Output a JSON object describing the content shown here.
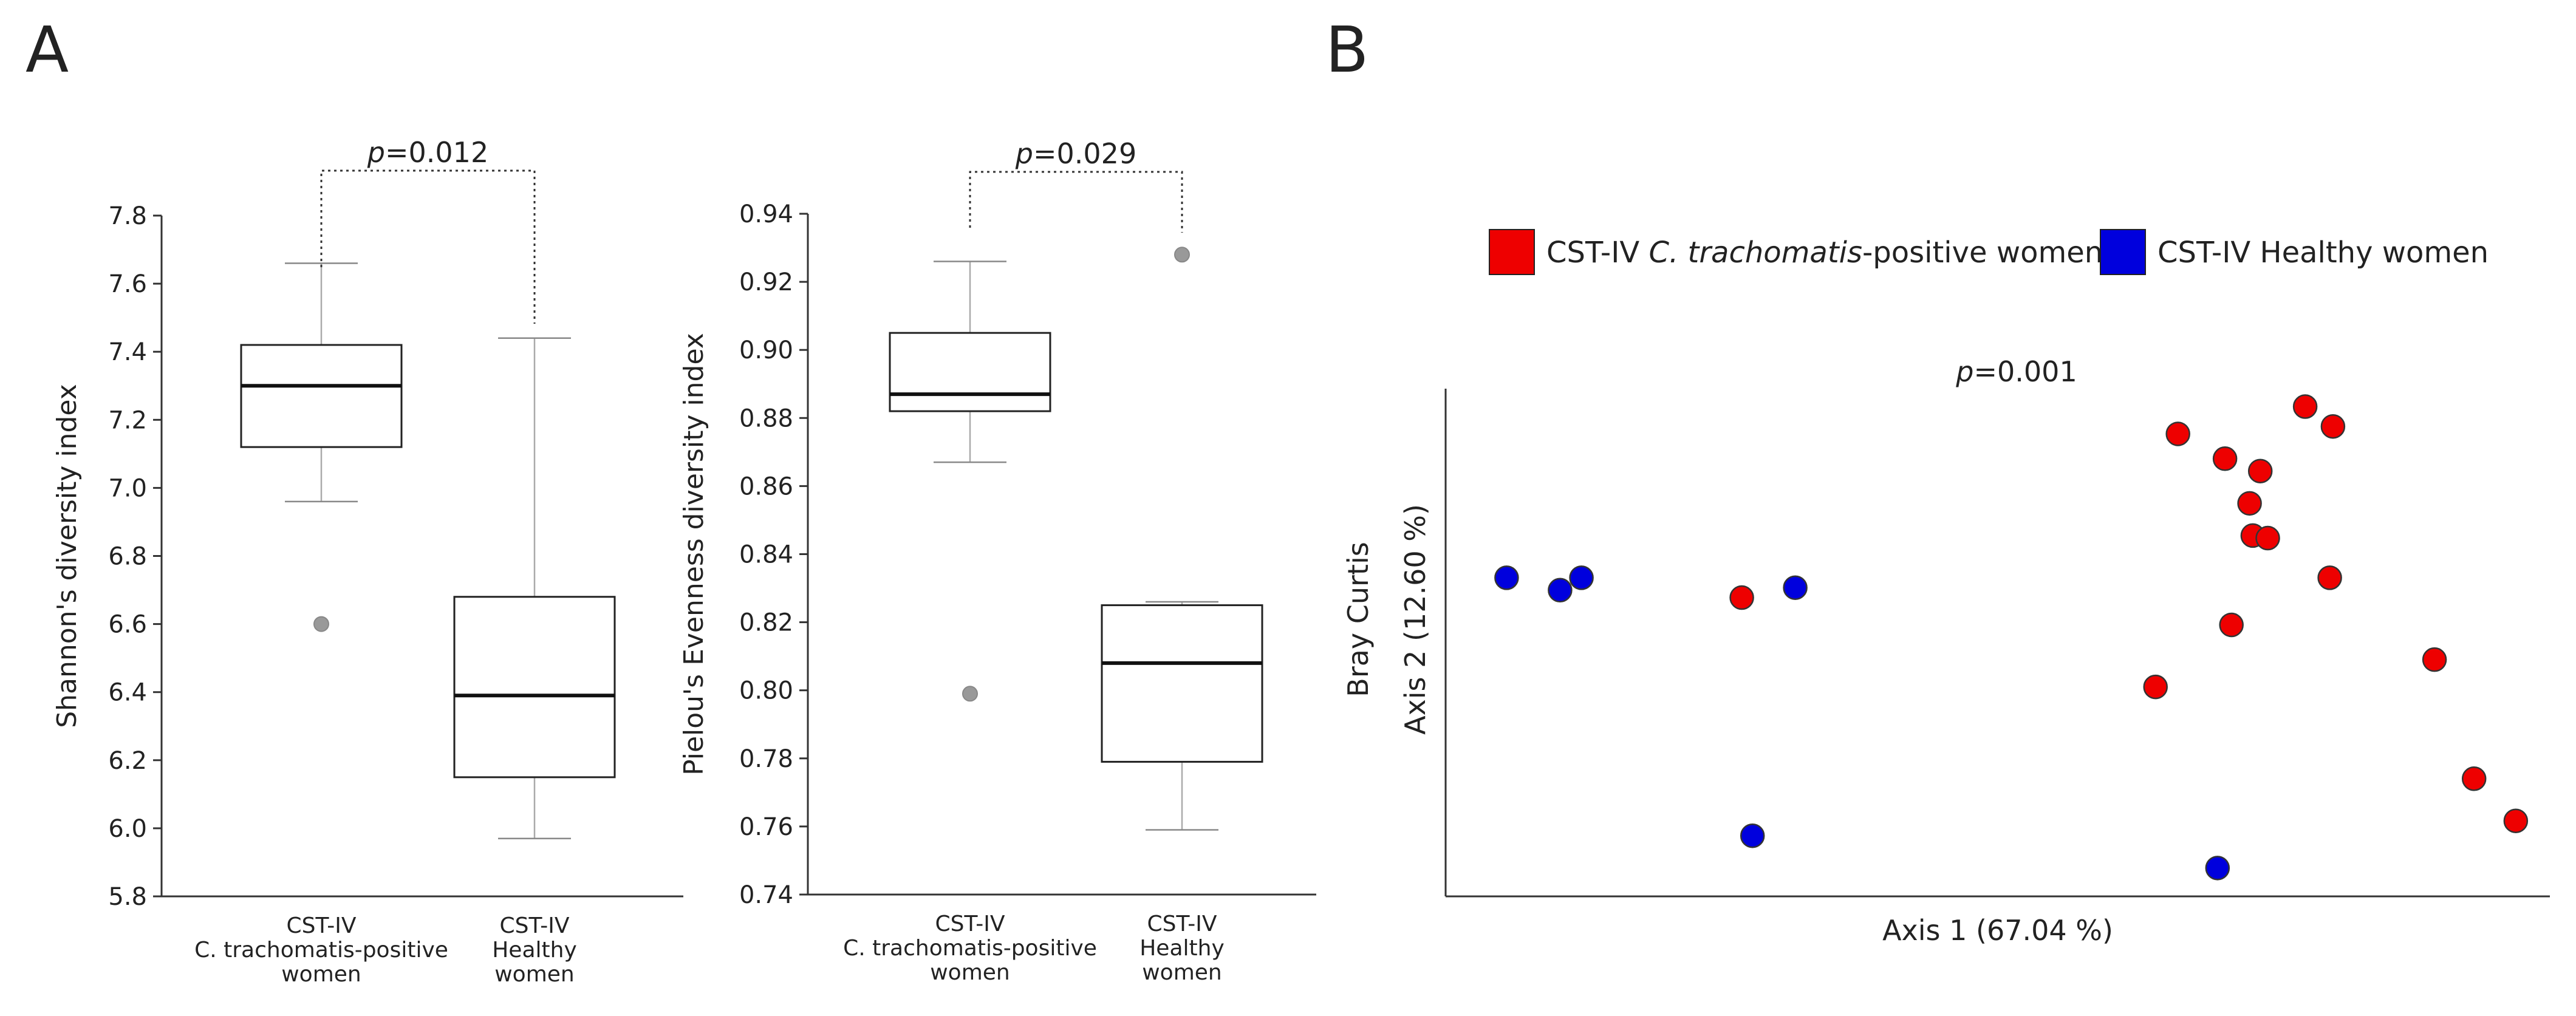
{
  "panel_labels": [
    "A",
    "B"
  ],
  "chart_data": [
    {
      "type": "box",
      "id": "shannon",
      "title": "",
      "xlabel": "",
      "ylabel": "Shannon's diversity index",
      "ylim": [
        5.8,
        7.8
      ],
      "yticks": [
        5.8,
        6.0,
        6.2,
        6.4,
        6.6,
        6.8,
        7.0,
        7.2,
        7.4,
        7.6,
        7.8
      ],
      "categories": [
        [
          "CST-IV",
          "C. trachomatis-positive",
          "women"
        ],
        [
          "CST-IV",
          "Healthy",
          "women"
        ]
      ],
      "boxes": [
        {
          "min": 6.96,
          "q1": 7.12,
          "median": 7.3,
          "q3": 7.42,
          "max": 7.66,
          "outliers": [
            6.6
          ]
        },
        {
          "min": 5.97,
          "q1": 6.15,
          "median": 6.39,
          "q3": 6.68,
          "max": 7.44,
          "outliers": []
        }
      ],
      "annotation": {
        "prefix": "p",
        "text": "=0.012"
      }
    },
    {
      "type": "box",
      "id": "pielou",
      "title": "",
      "xlabel": "",
      "ylabel": "Pielou's Evenness diversity index",
      "ylim": [
        0.74,
        0.94
      ],
      "yticks": [
        0.74,
        0.76,
        0.78,
        0.8,
        0.82,
        0.84,
        0.86,
        0.88,
        0.9,
        0.92,
        0.94
      ],
      "categories": [
        [
          "CST-IV",
          "C. trachomatis-positive",
          "women"
        ],
        [
          "CST-IV",
          "Healthy",
          "women"
        ]
      ],
      "boxes": [
        {
          "min": 0.867,
          "q1": 0.882,
          "median": 0.887,
          "q3": 0.905,
          "max": 0.926,
          "outliers": [
            0.799
          ]
        },
        {
          "min": 0.759,
          "q1": 0.779,
          "median": 0.808,
          "q3": 0.825,
          "max": 0.826,
          "outliers": [
            0.928
          ]
        }
      ],
      "annotation": {
        "prefix": "p",
        "text": "=0.029"
      }
    },
    {
      "type": "scatter",
      "id": "pcoa",
      "title": "",
      "xlabel": "Axis 1 (67.04 %)",
      "ylabel": [
        "Bray Curtis",
        "Axis 2 (12.60 %)"
      ],
      "xlim": [
        0,
        100
      ],
      "ylim": [
        0,
        100
      ],
      "annotation": {
        "prefix": "p",
        "text": "=0.001"
      },
      "legend": {
        "position": "top",
        "entries": [
          {
            "parts": [
              "CST-IV ",
              "C. trachomatis",
              "-positive women"
            ],
            "color": "#ee0000"
          },
          {
            "parts": [
              "CST-IV Healthy women"
            ],
            "color": "#0000dd"
          }
        ]
      },
      "series": [
        {
          "name": "CST-IV C. trachomatis-positive women",
          "color": "#ee0000",
          "points": [
            [
              66.8,
              91.5
            ],
            [
              71.2,
              86.5
            ],
            [
              74.5,
              84.0
            ],
            [
              78.7,
              97.0
            ],
            [
              81.3,
              93.0
            ],
            [
              73.5,
              77.5
            ],
            [
              73.8,
              71.0
            ],
            [
              75.2,
              70.5
            ],
            [
              81.0,
              62.5
            ],
            [
              26.0,
              58.5
            ],
            [
              71.8,
              53.0
            ],
            [
              90.8,
              46.0
            ],
            [
              64.7,
              40.5
            ],
            [
              94.5,
              22.0
            ],
            [
              98.4,
              13.5
            ]
          ]
        },
        {
          "name": "CST-IV Healthy women",
          "color": "#0000dd",
          "points": [
            [
              4.0,
              62.5
            ],
            [
              9.0,
              60.0
            ],
            [
              11.0,
              62.5
            ],
            [
              31.0,
              60.5
            ],
            [
              27.0,
              10.5
            ],
            [
              70.5,
              4.0
            ]
          ]
        }
      ]
    }
  ]
}
